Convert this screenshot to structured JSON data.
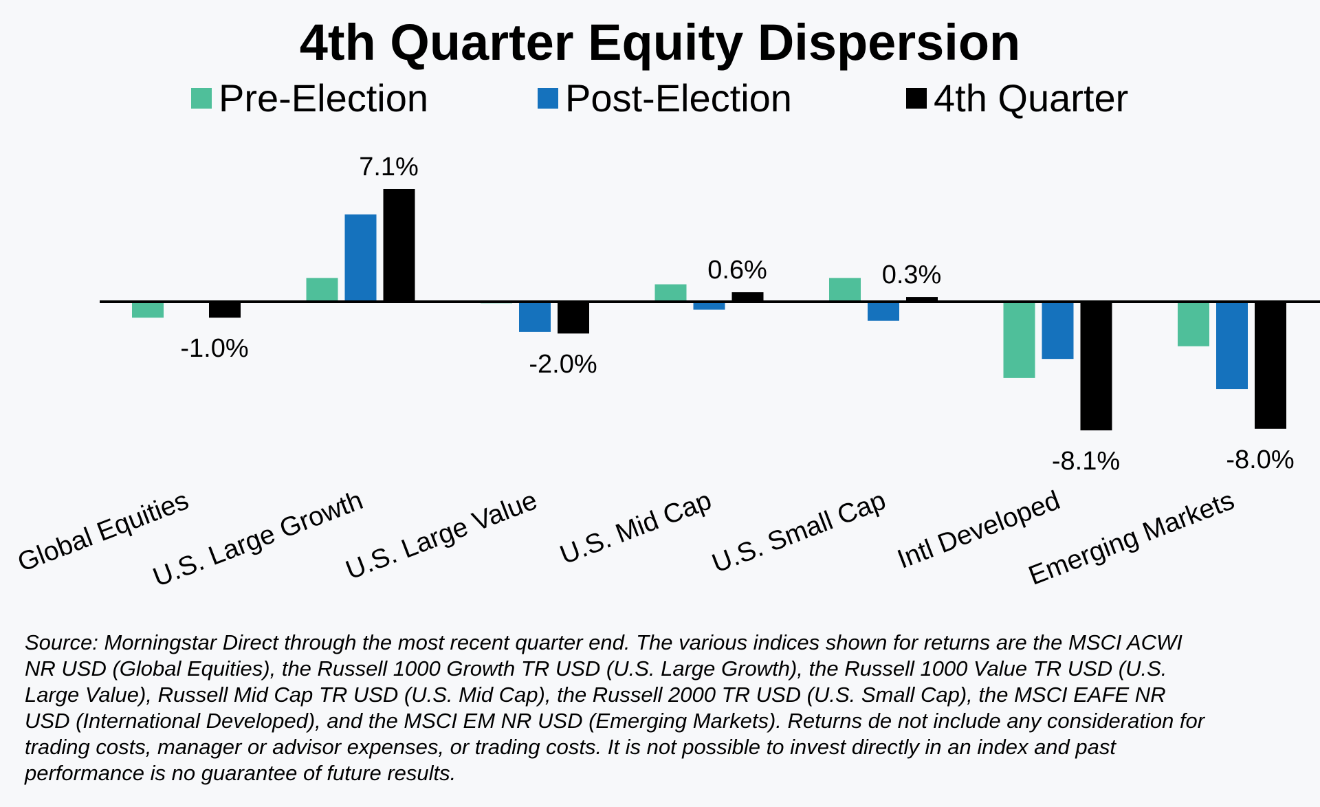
{
  "chart_data": {
    "type": "bar",
    "title": "4th Quarter Equity Dispersion",
    "xlabel": "",
    "ylabel": "",
    "ylim": [
      -9.3,
      8.0
    ],
    "grid": false,
    "legend_position": "top",
    "categories": [
      "Global Equities",
      "U.S. Large Growth",
      "U.S. Large Value",
      "U.S. Mid Cap",
      "U.S. Small Cap",
      "Intl Developed",
      "Emerging Markets"
    ],
    "series": [
      {
        "name": "Pre-Election",
        "color": "#4fbf9a",
        "values": [
          -1.0,
          1.5,
          -0.1,
          1.1,
          1.5,
          -4.8,
          -2.8
        ]
      },
      {
        "name": "Post-Election",
        "color": "#1572bd",
        "values": [
          0.0,
          5.5,
          -1.9,
          -0.5,
          -1.2,
          -3.6,
          -5.5
        ]
      },
      {
        "name": "4th Quarter",
        "color": "#000000",
        "values": [
          -1.0,
          7.1,
          -2.0,
          0.6,
          0.3,
          -8.1,
          -8.0
        ]
      }
    ],
    "data_labels": [
      "-1.0%",
      "7.1%",
      "-2.0%",
      "0.6%",
      "0.3%",
      "-8.1%",
      "-8.0%"
    ]
  },
  "footnote": [
    "Source: Morningstar Direct through the most recent quarter end.  The various indices shown for returns are the MSCI ACWI",
    "NR USD (Global Equities), the  Russell 1000 Growth TR USD (U.S. Large Growth), the Russell 1000 Value TR USD (U.S.",
    "Large Value), Russell Mid Cap TR USD (U.S. Mid Cap), the Russell 2000 TR USD (U.S. Small Cap), the MSCI EAFE NR",
    "USD (International Developed), and the MSCI EM NR USD (Emerging Markets).  Returns de not include any consideration for",
    "trading costs, manager or advisor expenses, or trading costs.  It is not possible to invest directly in an index and past",
    "performance is no guarantee of future results."
  ]
}
